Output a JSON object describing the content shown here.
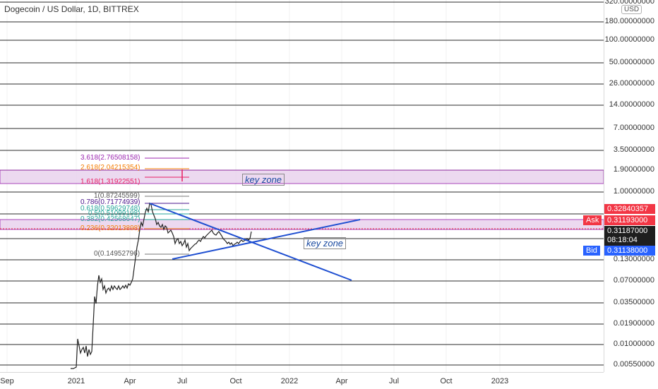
{
  "header": {
    "symbol_title": "Dogecoin / US Dollar, 1D, BITTREX",
    "currency": "USD"
  },
  "price_axis": {
    "labels": [
      "320.00000000",
      "180.00000000",
      "100.00000000",
      "50.00000000",
      "26.00000000",
      "14.00000000",
      "7.00000000",
      "3.50000000",
      "1.90000000",
      "1.00000000",
      "0.13000000",
      "0.07000000",
      "0.03500000",
      "0.01900000",
      "0.01000000",
      "0.00550000"
    ]
  },
  "time_axis": {
    "labels": [
      "Sep",
      "2021",
      "Apr",
      "Jul",
      "Oct",
      "2022",
      "Apr",
      "Jul",
      "Oct",
      "2023"
    ]
  },
  "price_tags": {
    "last_price": "0.32840357",
    "ask_label": "Ask",
    "ask_price": "0.31193000",
    "current_price": "0.31187000",
    "countdown": "08:18:04",
    "bid_label": "Bid",
    "bid_price": "0.31138000"
  },
  "fib_levels": [
    {
      "text": "3.618(2.76508158)",
      "color": "#9c27b0"
    },
    {
      "text": "2.618(2.04215354)",
      "color": "#f57c00"
    },
    {
      "text": "1.618(1.31922551)",
      "color": "#e91e63"
    },
    {
      "text": "1(0.87245599)",
      "color": "#555555"
    },
    {
      "text": "0.786(0.71774939)",
      "color": "#4a148c"
    },
    {
      "text": "0.618(0.59629748)",
      "color": "#26a69a"
    },
    {
      "text": "0.5(0.51099198)",
      "color": "#26a69a"
    },
    {
      "text": "0.382(0.42568647)",
      "color": "#26a69a"
    },
    {
      "text": "0.236(0.32013898)",
      "color": "#f57c00"
    },
    {
      "text": "0(0.14952796)",
      "color": "#555555"
    }
  ],
  "annotations": {
    "zone_upper": "key zone",
    "zone_lower": "key zone"
  },
  "colors": {
    "accent_blue": "#1f4fd1",
    "ask_red": "#f23645",
    "bid_blue": "#2962ff",
    "zone_fill": "#e1bee7",
    "zone_border": "#9c27b0"
  }
}
